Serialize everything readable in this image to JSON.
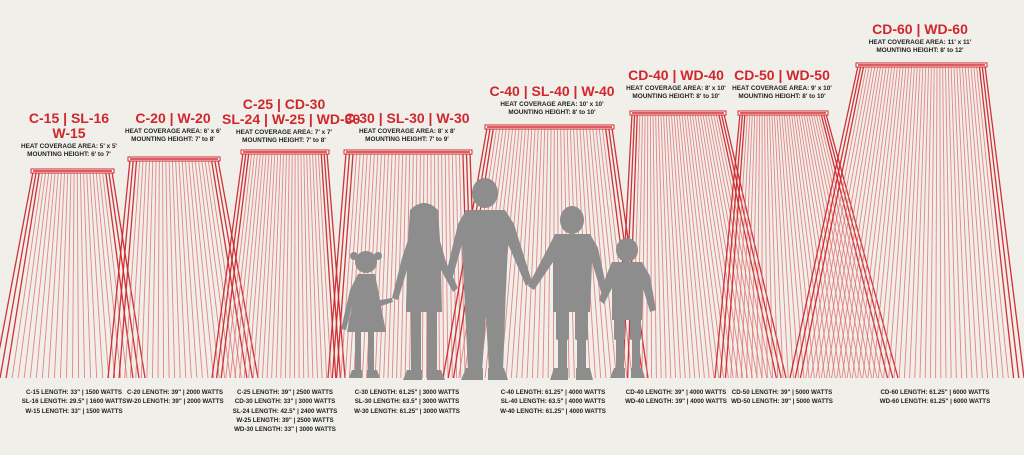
{
  "colors": {
    "background": "#f0efe9",
    "ray": "#e46a6d",
    "ray_dark": "#d0272e",
    "heater": "#d0272e",
    "silhouette": "#8d8d8d",
    "text": "#222222"
  },
  "heaters": [
    {
      "title_lines": [
        "C-15 | SL-16",
        "W-15"
      ],
      "coverage": "HEAT COVERAGE AREA: 5' x 5'",
      "mounting": "MOUNTING HEIGHT: 6' to 7'",
      "specs": [
        "C-15 LENGTH: 33\" | 1500 WATTS",
        "SL-16 LENGTH: 29.5\" | 1600 WATTS",
        "W-15 LENGTH: 33\" | 1500 WATTS"
      ]
    },
    {
      "title_lines": [
        "C-20 | W-20"
      ],
      "coverage": "HEAT COVERAGE AREA: 6' x 6'",
      "mounting": "MOUNTING HEIGHT: 7' to 8'",
      "specs": [
        "C-20 LENGTH: 39\" | 2000 WATTS",
        "W-20 LENGTH: 39\" | 2000 WATTS"
      ]
    },
    {
      "title_lines": [
        "C-25 | CD-30",
        "SL-24 | W-25 | WD-30"
      ],
      "coverage": "HEAT COVERAGE AREA: 7' x 7'",
      "mounting": "MOUNTING HEIGHT: 7' to 8'",
      "specs": [
        "C-25 LENGTH: 39\" | 2500 WATTS",
        "CD-30 LENGTH: 33\" | 3000 WATTS",
        "SL-24 LENGTH: 42.5\" | 2400 WATTS",
        "W-25 LENGTH: 39\" | 2500 WATTS",
        "WD-30 LENGTH: 33\" | 3000 WATTS"
      ]
    },
    {
      "title_lines": [
        "C-30 | SL-30 | W-30"
      ],
      "coverage": "HEAT COVERAGE AREA: 8' x 8'",
      "mounting": "MOUNTING HEIGHT: 7' to 9'",
      "specs": [
        "C-30 LENGTH: 61.25\" | 3000 WATTS",
        "SL-30 LENGTH: 63.5\" | 3000 WATTS",
        "W-30 LENGTH: 61.25\" | 3000 WATTS"
      ]
    },
    {
      "title_lines": [
        "C-40 | SL-40 | W-40"
      ],
      "coverage": "HEAT COVERAGE AREA: 10' x 10'",
      "mounting": "MOUNTING HEIGHT: 8' to 10'",
      "specs": [
        "C-40 LENGTH: 61.25\" | 4000 WATTS",
        "SL-40 LENGTH: 63.5\" | 4000 WATTS",
        "W-40 LENGTH: 61.25\" | 4000 WATTS"
      ]
    },
    {
      "title_lines": [
        "CD-40 | WD-40"
      ],
      "coverage": "HEAT COVERAGE AREA: 8' x 10'",
      "mounting": "MOUNTING HEIGHT: 8' to 10'",
      "specs": [
        "CD-40 LENGTH: 39\" | 4000 WATTS",
        "WD-40 LENGTH: 39\" | 4000 WATTS"
      ]
    },
    {
      "title_lines": [
        "CD-50 | WD-50"
      ],
      "coverage": "HEAT COVERAGE AREA: 9' x 10'",
      "mounting": "MOUNTING HEIGHT: 8' to 10'",
      "specs": [
        "CD-50 LENGTH: 39\" | 5000 WATTS",
        "WD-50 LENGTH: 39\" | 5000 WATTS"
      ]
    },
    {
      "title_lines": [
        "CD-60 | WD-60"
      ],
      "coverage": "HEAT COVERAGE AREA: 11' x 11'",
      "mounting": "MOUNTING HEIGHT: 8' to 12'",
      "specs": [
        "CD-60 LENGTH: 61.25\" | 6000 WATTS",
        "WD-60 LENGTH: 61.25\" | 6000 WATTS"
      ]
    }
  ]
}
